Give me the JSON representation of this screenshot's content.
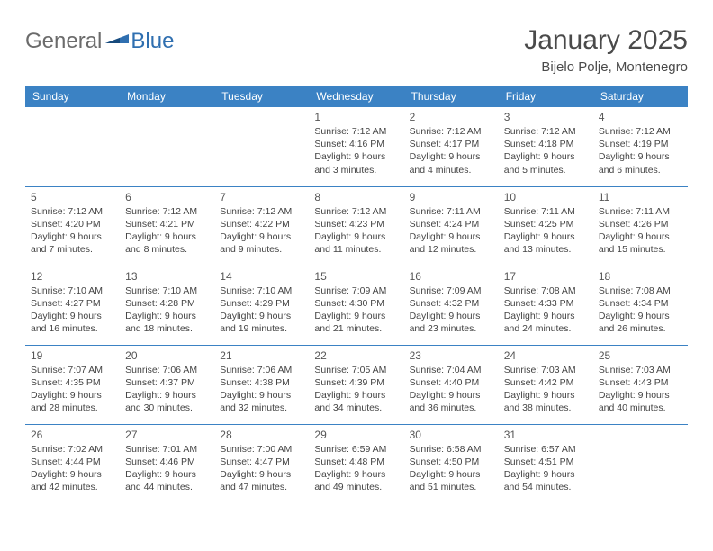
{
  "brand": {
    "part1": "General",
    "part2": "Blue"
  },
  "title": "January 2025",
  "location": "Bijelo Polje, Montenegro",
  "colors": {
    "header_bg": "#3b82c4",
    "header_text": "#ffffff",
    "divider": "#3b82c4",
    "body_text": "#444444",
    "daynum": "#555555",
    "brand_gray": "#6b6b6b",
    "brand_blue": "#2f6fb0"
  },
  "weekdays": [
    "Sunday",
    "Monday",
    "Tuesday",
    "Wednesday",
    "Thursday",
    "Friday",
    "Saturday"
  ],
  "grid": [
    [
      null,
      null,
      null,
      {
        "day": "1",
        "sunrise": "7:12 AM",
        "sunset": "4:16 PM",
        "day_h": "9",
        "day_m": "3"
      },
      {
        "day": "2",
        "sunrise": "7:12 AM",
        "sunset": "4:17 PM",
        "day_h": "9",
        "day_m": "4"
      },
      {
        "day": "3",
        "sunrise": "7:12 AM",
        "sunset": "4:18 PM",
        "day_h": "9",
        "day_m": "5"
      },
      {
        "day": "4",
        "sunrise": "7:12 AM",
        "sunset": "4:19 PM",
        "day_h": "9",
        "day_m": "6"
      }
    ],
    [
      {
        "day": "5",
        "sunrise": "7:12 AM",
        "sunset": "4:20 PM",
        "day_h": "9",
        "day_m": "7"
      },
      {
        "day": "6",
        "sunrise": "7:12 AM",
        "sunset": "4:21 PM",
        "day_h": "9",
        "day_m": "8"
      },
      {
        "day": "7",
        "sunrise": "7:12 AM",
        "sunset": "4:22 PM",
        "day_h": "9",
        "day_m": "9"
      },
      {
        "day": "8",
        "sunrise": "7:12 AM",
        "sunset": "4:23 PM",
        "day_h": "9",
        "day_m": "11"
      },
      {
        "day": "9",
        "sunrise": "7:11 AM",
        "sunset": "4:24 PM",
        "day_h": "9",
        "day_m": "12"
      },
      {
        "day": "10",
        "sunrise": "7:11 AM",
        "sunset": "4:25 PM",
        "day_h": "9",
        "day_m": "13"
      },
      {
        "day": "11",
        "sunrise": "7:11 AM",
        "sunset": "4:26 PM",
        "day_h": "9",
        "day_m": "15"
      }
    ],
    [
      {
        "day": "12",
        "sunrise": "7:10 AM",
        "sunset": "4:27 PM",
        "day_h": "9",
        "day_m": "16"
      },
      {
        "day": "13",
        "sunrise": "7:10 AM",
        "sunset": "4:28 PM",
        "day_h": "9",
        "day_m": "18"
      },
      {
        "day": "14",
        "sunrise": "7:10 AM",
        "sunset": "4:29 PM",
        "day_h": "9",
        "day_m": "19"
      },
      {
        "day": "15",
        "sunrise": "7:09 AM",
        "sunset": "4:30 PM",
        "day_h": "9",
        "day_m": "21"
      },
      {
        "day": "16",
        "sunrise": "7:09 AM",
        "sunset": "4:32 PM",
        "day_h": "9",
        "day_m": "23"
      },
      {
        "day": "17",
        "sunrise": "7:08 AM",
        "sunset": "4:33 PM",
        "day_h": "9",
        "day_m": "24"
      },
      {
        "day": "18",
        "sunrise": "7:08 AM",
        "sunset": "4:34 PM",
        "day_h": "9",
        "day_m": "26"
      }
    ],
    [
      {
        "day": "19",
        "sunrise": "7:07 AM",
        "sunset": "4:35 PM",
        "day_h": "9",
        "day_m": "28"
      },
      {
        "day": "20",
        "sunrise": "7:06 AM",
        "sunset": "4:37 PM",
        "day_h": "9",
        "day_m": "30"
      },
      {
        "day": "21",
        "sunrise": "7:06 AM",
        "sunset": "4:38 PM",
        "day_h": "9",
        "day_m": "32"
      },
      {
        "day": "22",
        "sunrise": "7:05 AM",
        "sunset": "4:39 PM",
        "day_h": "9",
        "day_m": "34"
      },
      {
        "day": "23",
        "sunrise": "7:04 AM",
        "sunset": "4:40 PM",
        "day_h": "9",
        "day_m": "36"
      },
      {
        "day": "24",
        "sunrise": "7:03 AM",
        "sunset": "4:42 PM",
        "day_h": "9",
        "day_m": "38"
      },
      {
        "day": "25",
        "sunrise": "7:03 AM",
        "sunset": "4:43 PM",
        "day_h": "9",
        "day_m": "40"
      }
    ],
    [
      {
        "day": "26",
        "sunrise": "7:02 AM",
        "sunset": "4:44 PM",
        "day_h": "9",
        "day_m": "42"
      },
      {
        "day": "27",
        "sunrise": "7:01 AM",
        "sunset": "4:46 PM",
        "day_h": "9",
        "day_m": "44"
      },
      {
        "day": "28",
        "sunrise": "7:00 AM",
        "sunset": "4:47 PM",
        "day_h": "9",
        "day_m": "47"
      },
      {
        "day": "29",
        "sunrise": "6:59 AM",
        "sunset": "4:48 PM",
        "day_h": "9",
        "day_m": "49"
      },
      {
        "day": "30",
        "sunrise": "6:58 AM",
        "sunset": "4:50 PM",
        "day_h": "9",
        "day_m": "51"
      },
      {
        "day": "31",
        "sunrise": "6:57 AM",
        "sunset": "4:51 PM",
        "day_h": "9",
        "day_m": "54"
      },
      null
    ]
  ],
  "labels": {
    "sunrise": "Sunrise:",
    "sunset": "Sunset:",
    "daylight": "Daylight:",
    "hours": "hours",
    "and": "and",
    "minutes": "minutes."
  }
}
